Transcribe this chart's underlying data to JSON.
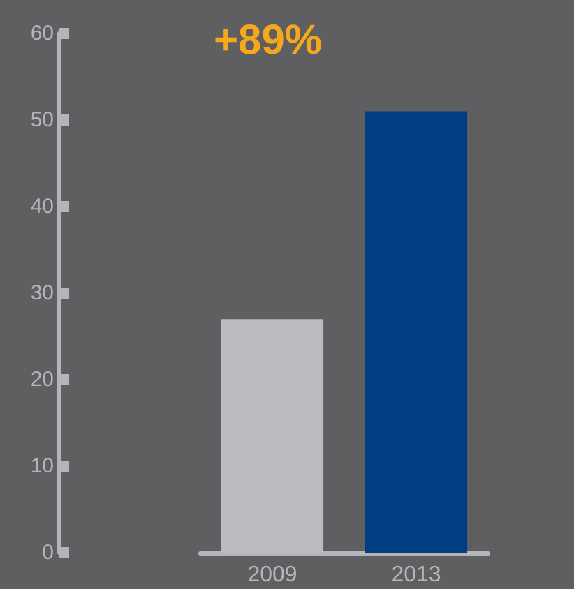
{
  "chart_data": {
    "type": "bar",
    "categories": [
      "2009",
      "2013"
    ],
    "colors": [
      "#babbbe",
      "#003e82"
    ],
    "values": [
      27,
      51
    ],
    "ylim": [
      0,
      60
    ],
    "yticks": [
      0,
      10,
      20,
      30,
      40,
      50,
      60
    ],
    "grid": false,
    "annotations": [
      "+89%"
    ]
  }
}
